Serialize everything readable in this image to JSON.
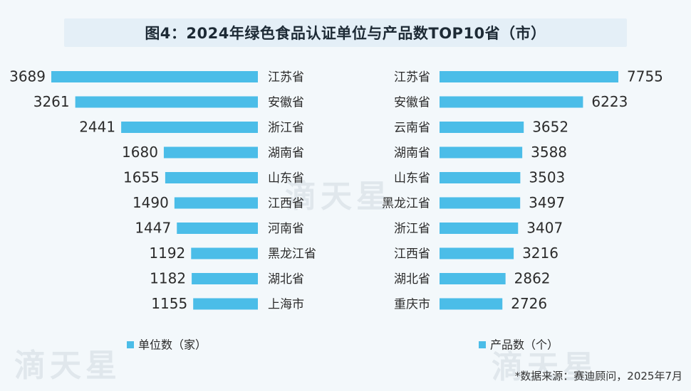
{
  "title": "图4：2024年绿色食品认证单位与产品数TOP10省（市）",
  "source": "*数据来源：赛迪顾问，2025年7月",
  "watermark": "滴天星",
  "colors": {
    "bar": "#4bbde8",
    "text": "#2b2b2b",
    "background": "#f3f8fb"
  },
  "chart_data": [
    {
      "type": "bar",
      "orientation": "horizontal",
      "direction": "right-to-left",
      "legend": "单位数（家）",
      "legend_position": "bottom-left",
      "categories": [
        "江苏省",
        "安徽省",
        "浙江省",
        "湖南省",
        "山东省",
        "江西省",
        "河南省",
        "黑龙江省",
        "湖北省",
        "上海市"
      ],
      "values": [
        3689,
        3261,
        2441,
        1680,
        1655,
        1490,
        1447,
        1192,
        1182,
        1155
      ],
      "grid": false
    },
    {
      "type": "bar",
      "orientation": "horizontal",
      "direction": "left-to-right",
      "legend": "产品数（个）",
      "legend_position": "bottom-center",
      "categories": [
        "江苏省",
        "安徽省",
        "云南省",
        "湖南省",
        "山东省",
        "黑龙江省",
        "浙江省",
        "江西省",
        "湖北省",
        "重庆市"
      ],
      "values": [
        7755,
        6223,
        3652,
        3588,
        3503,
        3497,
        3407,
        3216,
        2862,
        2726
      ],
      "grid": false
    }
  ]
}
